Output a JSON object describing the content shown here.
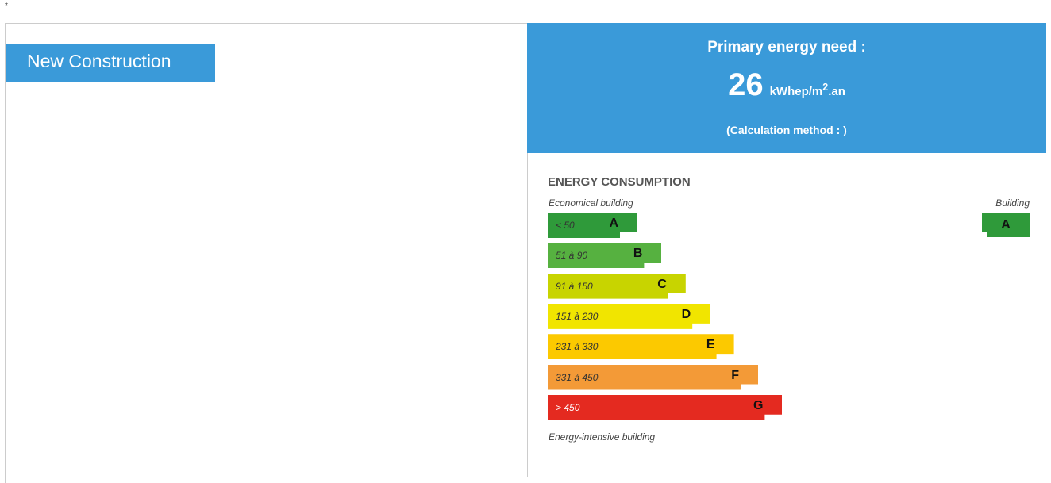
{
  "marker": "*",
  "header_button": "New Construction",
  "summary": {
    "title": "Primary energy need :",
    "value": 26,
    "unit": "kWhep/m",
    "unit_sup": "2",
    "unit_suffix": ".an",
    "method": "(Calculation method : )"
  },
  "scale": {
    "title": "ENERGY CONSUMPTION",
    "top_label": "Economical building",
    "building_label": "Building",
    "classes": [
      {
        "range": "< 50",
        "letter": "A",
        "color": "#2f9a3a"
      },
      {
        "range": "51 à 90",
        "letter": "B",
        "color": "#56b140"
      },
      {
        "range": "91 à 150",
        "letter": "C",
        "color": "#c8d400"
      },
      {
        "range": "151 à 230",
        "letter": "D",
        "color": "#f1e500"
      },
      {
        "range": "231 à 330",
        "letter": "E",
        "color": "#fcc900"
      },
      {
        "range": "331 à 450",
        "letter": "F",
        "color": "#f39a37"
      },
      {
        "range": "> 450",
        "letter": "G",
        "color": "#e42a20"
      }
    ],
    "bottom_label": "Energy-intensive building",
    "building_class": "A",
    "building_color": "#2f9a3a"
  }
}
